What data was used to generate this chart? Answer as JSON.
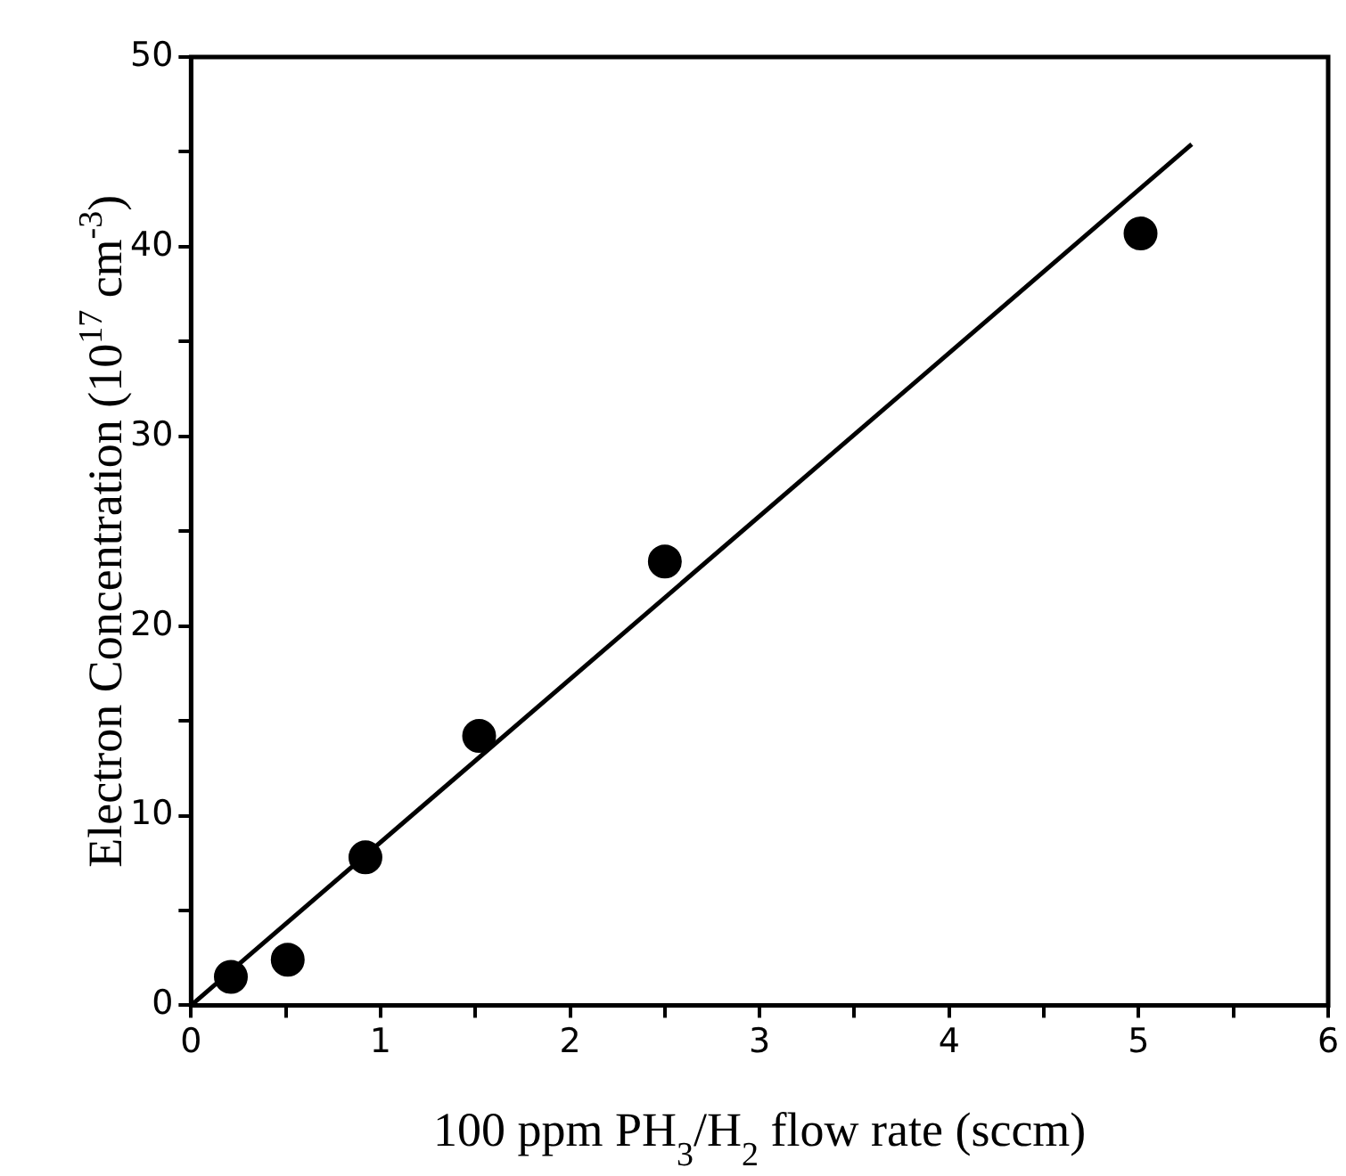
{
  "chart_data": {
    "type": "scatter",
    "xlabel": "100 ppm PH$_{3}$/H$_{2}$ flow rate (sccm)",
    "ylabel": "Electron Concentration (10$^{17}$ cm$^{-3}$)",
    "series": [
      {
        "color": "#000000",
        "marker": "circle",
        "x": [
          0.21,
          0.51,
          0.92,
          1.52,
          2.5,
          5.01
        ],
        "values": [
          1.5,
          2.4,
          7.8,
          14.2,
          23.4,
          40.7
        ]
      },
      {
        "type": "line",
        "color": "#000000",
        "marker": "none",
        "line_style": "solid",
        "x": [
          0,
          5.28
        ],
        "values": [
          0,
          45.4
        ]
      }
    ],
    "xlim": [
      0,
      6
    ],
    "ylim": [
      0,
      50
    ],
    "xticks": [
      0,
      {
        "value": 0.5,
        "label": null
      },
      1,
      {
        "value": 1.5,
        "label": null
      },
      2,
      {
        "value": 2.5,
        "label": null
      },
      3,
      {
        "value": 3.5,
        "label": null
      },
      4,
      {
        "value": 4.5,
        "label": null
      },
      5,
      {
        "value": 5.5,
        "label": null
      },
      6
    ],
    "yticks": [
      0,
      {
        "value": 5,
        "label": null
      },
      10,
      {
        "value": 15,
        "label": null
      },
      20,
      {
        "value": 25,
        "label": null
      },
      30,
      {
        "value": 35,
        "label": null
      },
      40,
      {
        "value": 45,
        "label": null
      },
      50
    ],
    "grid": false,
    "legend": false
  }
}
